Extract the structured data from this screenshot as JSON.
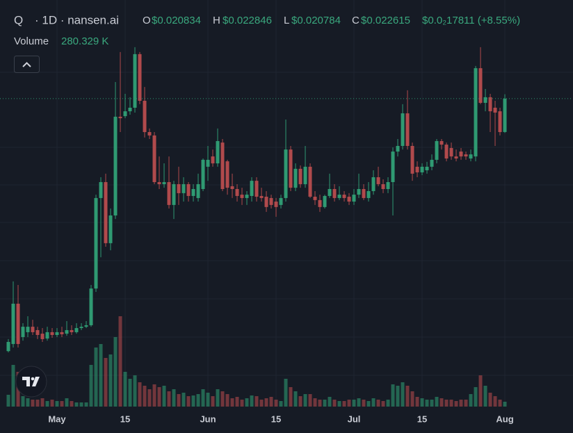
{
  "header": {
    "symbol": "Q",
    "interval": "· 1D · nansen.ai",
    "open_label": "O",
    "open": "$0.020834",
    "high_label": "H",
    "high": "$0.022846",
    "low_label": "L",
    "low": "$0.020784",
    "close_label": "C",
    "close": "$0.022615",
    "change": "$0.0₂17811 (+8.55%)",
    "volume_label": "Volume"
  },
  "chart_data": {
    "type": "candlestick",
    "x": [
      "04-21",
      "04-22",
      "04-23",
      "04-24",
      "04-25",
      "04-26",
      "04-27",
      "04-28",
      "04-29",
      "04-30",
      "05-01",
      "05-02",
      "05-03",
      "05-04",
      "05-05",
      "05-06",
      "05-07",
      "05-08",
      "05-09",
      "05-10",
      "05-11",
      "05-12",
      "05-13",
      "05-14",
      "05-15",
      "05-16",
      "05-17",
      "05-18",
      "05-19",
      "05-20",
      "05-21",
      "05-22",
      "05-23",
      "05-24",
      "05-25",
      "05-26",
      "05-27",
      "05-28",
      "05-29",
      "05-30",
      "05-31",
      "06-01",
      "06-02",
      "06-03",
      "06-04",
      "06-05",
      "06-06",
      "06-07",
      "06-08",
      "06-09",
      "06-10",
      "06-11",
      "06-12",
      "06-13",
      "06-14",
      "06-15",
      "06-16",
      "06-17",
      "06-18",
      "06-19",
      "06-20",
      "06-21",
      "06-22",
      "06-23",
      "06-24",
      "06-25",
      "06-26",
      "06-27",
      "06-28",
      "06-29",
      "06-30",
      "07-01",
      "07-02",
      "07-03",
      "07-04",
      "07-05",
      "07-06",
      "07-07",
      "07-08",
      "07-09",
      "07-10",
      "07-11",
      "07-12",
      "07-13",
      "07-14",
      "07-15",
      "07-16",
      "07-17",
      "07-18",
      "07-19",
      "07-20",
      "07-21",
      "07-22",
      "07-23",
      "07-24",
      "07-25",
      "07-26",
      "07-27",
      "07-28",
      "07-29",
      "07-30",
      "07-31",
      "08-01"
    ],
    "open": [
      0.00914,
      0.00952,
      0.01167,
      0.00989,
      0.01015,
      0.01044,
      0.01026,
      0.01007,
      0.00981,
      0.01015,
      0.01,
      0.01015,
      0.01007,
      0.01026,
      0.01015,
      0.01037,
      0.01044,
      0.01052,
      0.01248,
      0.01731,
      0.01816,
      0.0149,
      0.01638,
      0.02165,
      0.02168,
      0.02194,
      0.02213,
      0.02499,
      0.0225,
      0.02083,
      0.02065,
      0.01816,
      0.01805,
      0.01816,
      0.01694,
      0.01805,
      0.01757,
      0.01805,
      0.01742,
      0.01731,
      0.01779,
      0.01898,
      0.01953,
      0.01916,
      0.02027,
      0.01927,
      0.01794,
      0.01779,
      0.01749,
      0.01731,
      0.01742,
      0.01823,
      0.01742,
      0.01738,
      0.01731,
      0.01712,
      0.01694,
      0.01731,
      0.0199,
      0.01786,
      0.01887,
      0.01805,
      0.01898,
      0.01738,
      0.0172,
      0.01683,
      0.01742,
      0.01779,
      0.01731,
      0.01749,
      0.01738,
      0.01712,
      0.01749,
      0.01779,
      0.01731,
      0.01768,
      0.01842,
      0.01805,
      0.01779,
      0.01816,
      0.01979,
      0.02009,
      0.02183,
      0.02009,
      0.01898,
      0.01868,
      0.01879,
      0.01898,
      0.01935,
      0.02035,
      0.02016,
      0.01998,
      0.01953,
      0.01979,
      0.01964,
      0.01942,
      0.01953,
      0.02424,
      0.02239,
      0.02269,
      0.02213,
      0.02194,
      0.020834
    ],
    "high": [
      0.00978,
      0.01286,
      0.01267,
      0.01063,
      0.011,
      0.01081,
      0.01044,
      0.01037,
      0.01044,
      0.01037,
      0.01037,
      0.01044,
      0.01074,
      0.01052,
      0.01063,
      0.01063,
      0.01074,
      0.01267,
      0.01749,
      0.01842,
      0.01861,
      0.01675,
      0.0235,
      0.0251,
      0.02287,
      0.02269,
      0.02536,
      0.0251,
      0.02324,
      0.02102,
      0.02083,
      0.01953,
      0.01916,
      0.01953,
      0.01823,
      0.01898,
      0.01842,
      0.01816,
      0.01805,
      0.01861,
      0.01942,
      0.02009,
      0.0199,
      0.02102,
      0.02046,
      0.01935,
      0.01861,
      0.01805,
      0.01786,
      0.01768,
      0.01842,
      0.01842,
      0.01786,
      0.01768,
      0.01749,
      0.01731,
      0.01749,
      0.0215,
      0.02009,
      0.01916,
      0.01905,
      0.02009,
      0.01916,
      0.01768,
      0.01749,
      0.01749,
      0.01861,
      0.01805,
      0.01794,
      0.01768,
      0.01757,
      0.01779,
      0.01861,
      0.01805,
      0.01816,
      0.01879,
      0.01898,
      0.01831,
      0.01842,
      0.02001,
      0.02046,
      0.02232,
      0.02306,
      0.02027,
      0.01927,
      0.01916,
      0.01924,
      0.01964,
      0.02046,
      0.02046,
      0.02027,
      0.02027,
      0.0199,
      0.01998,
      0.01979,
      0.0199,
      0.02436,
      0.02536,
      0.02313,
      0.02287,
      0.0225,
      0.02213,
      0.022846
    ],
    "low": [
      0.00907,
      0.00933,
      0.00933,
      0.0097,
      0.00989,
      0.01,
      0.00978,
      0.00963,
      0.0097,
      0.00985,
      0.00989,
      0.00989,
      0.00996,
      0.01,
      0.01007,
      0.01026,
      0.01037,
      0.01044,
      0.0123,
      0.01415,
      0.01471,
      0.01452,
      0.01619,
      0.02083,
      0.02157,
      0.02176,
      0.02187,
      0.02232,
      0.02054,
      0.02046,
      0.01805,
      0.01779,
      0.01786,
      0.01675,
      0.01619,
      0.01694,
      0.01712,
      0.01712,
      0.01712,
      0.01712,
      0.01768,
      0.01823,
      0.01898,
      0.01898,
      0.01768,
      0.01749,
      0.01731,
      0.01712,
      0.01694,
      0.01694,
      0.01712,
      0.01712,
      0.01712,
      0.01657,
      0.01675,
      0.01631,
      0.01675,
      0.01712,
      0.01768,
      0.01768,
      0.01786,
      0.01786,
      0.01731,
      0.01694,
      0.01657,
      0.01675,
      0.01731,
      0.01712,
      0.0172,
      0.01712,
      0.01694,
      0.01694,
      0.01731,
      0.0172,
      0.01712,
      0.01749,
      0.01794,
      0.01757,
      0.01757,
      0.01638,
      0.01953,
      0.0199,
      0.0199,
      0.01823,
      0.01842,
      0.01853,
      0.01861,
      0.01879,
      0.01916,
      0.0199,
      0.01927,
      0.01935,
      0.01927,
      0.01935,
      0.01935,
      0.01927,
      0.01927,
      0.02232,
      0.02194,
      0.02083,
      0.02009,
      0.02065,
      0.020784
    ],
    "close": [
      0.00963,
      0.01167,
      0.00952,
      0.01044,
      0.01044,
      0.01015,
      0.01,
      0.00978,
      0.01015,
      0.01,
      0.01015,
      0.01004,
      0.01026,
      0.01015,
      0.01037,
      0.01044,
      0.01052,
      0.01248,
      0.01731,
      0.01816,
      0.0149,
      0.01638,
      0.02165,
      0.02157,
      0.02194,
      0.02213,
      0.02499,
      0.0225,
      0.02083,
      0.02065,
      0.01816,
      0.01805,
      0.01816,
      0.01694,
      0.01805,
      0.01757,
      0.01805,
      0.01742,
      0.01779,
      0.01805,
      0.01935,
      0.01935,
      0.01916,
      0.02035,
      0.01779,
      0.01786,
      0.01779,
      0.01742,
      0.01731,
      0.01749,
      0.01823,
      0.01738,
      0.01731,
      0.01683,
      0.01694,
      0.01683,
      0.01731,
      0.0199,
      0.01786,
      0.01887,
      0.01805,
      0.01898,
      0.01738,
      0.0172,
      0.01683,
      0.01742,
      0.01779,
      0.01731,
      0.01749,
      0.01731,
      0.01712,
      0.01749,
      0.01779,
      0.01731,
      0.01768,
      0.01842,
      0.01805,
      0.01779,
      0.01816,
      0.01979,
      0.02009,
      0.02183,
      0.02009,
      0.01861,
      0.01868,
      0.01898,
      0.01898,
      0.01935,
      0.02035,
      0.02016,
      0.01942,
      0.01953,
      0.01942,
      0.01953,
      0.01953,
      0.01964,
      0.02424,
      0.02239,
      0.02269,
      0.02194,
      0.02187,
      0.02083,
      0.022615
    ],
    "volume": [
      680,
      2400,
      2000,
      600,
      480,
      400,
      400,
      480,
      320,
      400,
      320,
      320,
      480,
      320,
      240,
      240,
      240,
      2400,
      3400,
      3600,
      2800,
      3000,
      4000,
      5200,
      2000,
      1600,
      1800,
      1400,
      1200,
      1000,
      1280,
      1120,
      1200,
      880,
      1000,
      720,
      800,
      600,
      640,
      720,
      1000,
      800,
      600,
      1000,
      880,
      720,
      480,
      560,
      400,
      480,
      640,
      600,
      400,
      480,
      560,
      400,
      320,
      1600,
      1120,
      880,
      600,
      720,
      720,
      480,
      400,
      400,
      560,
      400,
      320,
      320,
      400,
      400,
      480,
      400,
      320,
      480,
      400,
      320,
      400,
      1280,
      1200,
      1400,
      1200,
      880,
      560,
      480,
      400,
      400,
      560,
      480,
      400,
      400,
      320,
      400,
      400,
      720,
      1120,
      1800,
      1200,
      800,
      600,
      400,
      280.329
    ],
    "volume_last_label": "280.329 K",
    "up_color": "#2f9a72",
    "down_color": "#b04a4c",
    "ylim": [
      0.00859,
      0.02621
    ],
    "volume_ylim": [
      0,
      5200
    ],
    "xticks": [
      {
        "value": "05-01",
        "label": "May"
      },
      {
        "value": "05-15",
        "label": "15"
      },
      {
        "value": "06-01",
        "label": "Jun"
      },
      {
        "value": "06-15",
        "label": "15"
      },
      {
        "value": "07-01",
        "label": "Jul"
      },
      {
        "value": "07-15",
        "label": "15"
      },
      {
        "value": "08-01",
        "label": "Aug"
      }
    ],
    "grid": true
  }
}
